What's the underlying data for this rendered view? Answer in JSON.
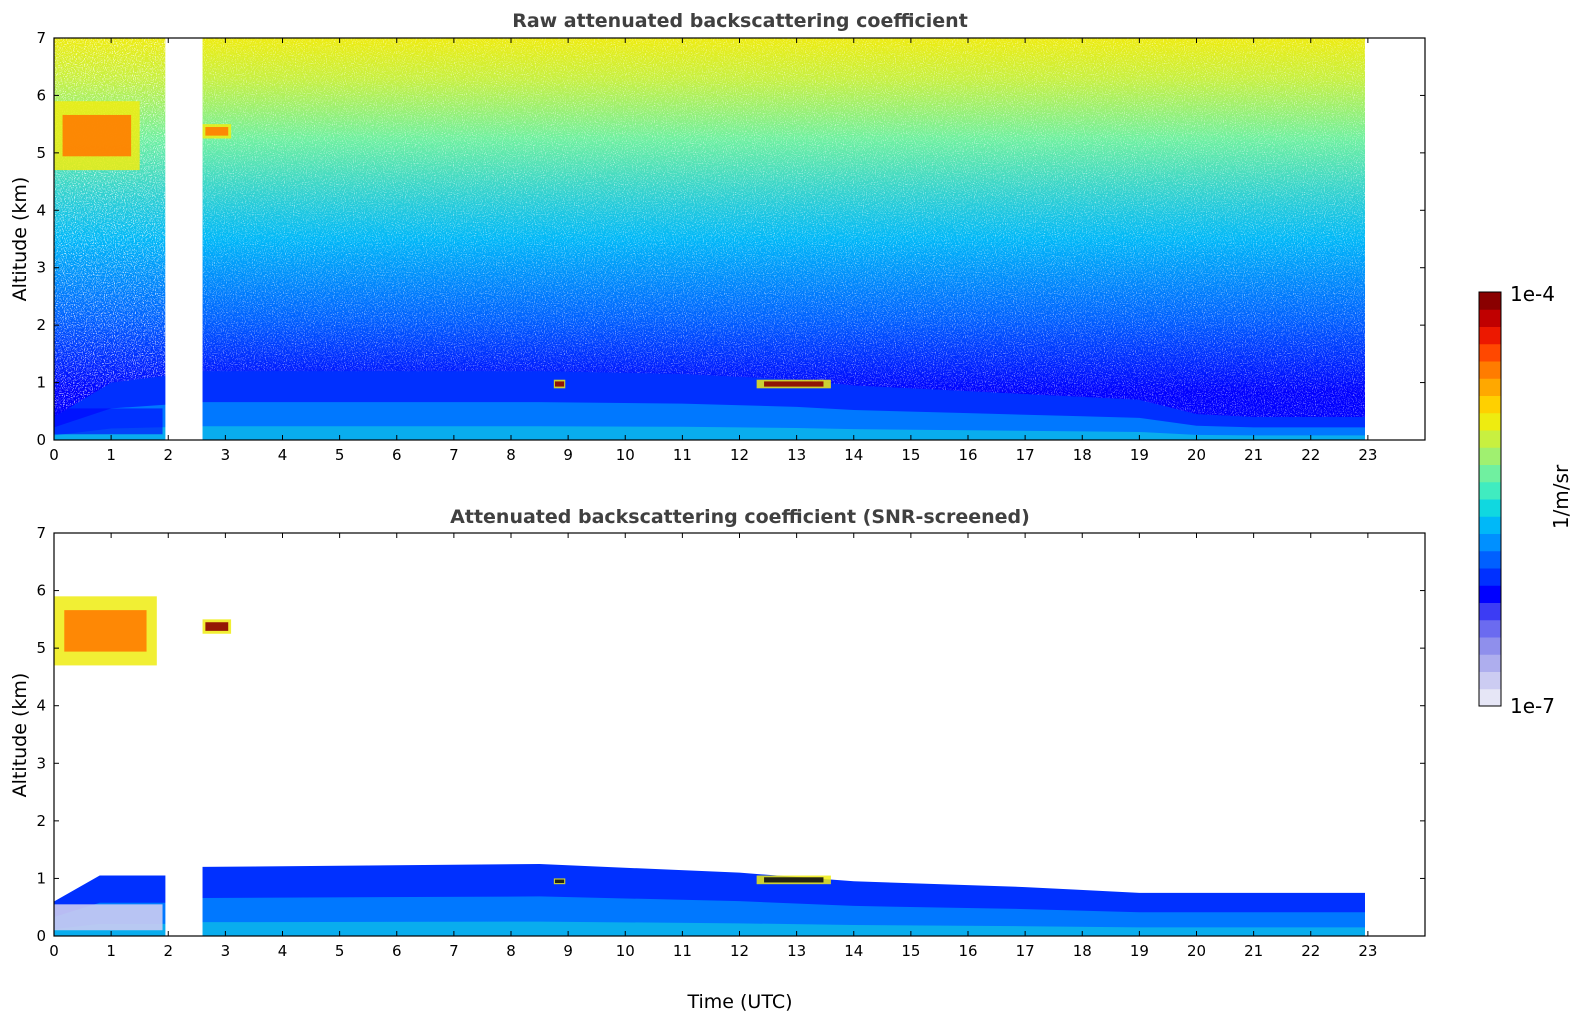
{
  "chart_data": [
    {
      "type": "heatmap",
      "title": "Raw attenuated backscattering coefficient",
      "xlabel": "",
      "ylabel": "Altitude (km)",
      "xlim": [
        0,
        24
      ],
      "ylim": [
        0,
        7
      ],
      "x_ticks": [
        0,
        1,
        2,
        3,
        4,
        5,
        6,
        7,
        8,
        9,
        10,
        11,
        12,
        13,
        14,
        15,
        16,
        17,
        18,
        19,
        20,
        21,
        22,
        23
      ],
      "y_ticks": [
        0,
        1,
        2,
        3,
        4,
        5,
        6,
        7
      ],
      "data_gaps_utc": [
        [
          1.95,
          2.6
        ],
        [
          22.95,
          24
        ]
      ],
      "boundary_layer_top_km": [
        {
          "x": 0,
          "y": 0.4
        },
        {
          "x": 1,
          "y": 1.0
        },
        {
          "x": 2.6,
          "y": 1.2
        },
        {
          "x": 6,
          "y": 1.2
        },
        {
          "x": 8.5,
          "y": 1.2
        },
        {
          "x": 11,
          "y": 1.15
        },
        {
          "x": 13,
          "y": 1.05
        },
        {
          "x": 14,
          "y": 0.95
        },
        {
          "x": 16,
          "y": 0.85
        },
        {
          "x": 18,
          "y": 0.75
        },
        {
          "x": 19,
          "y": 0.7
        },
        {
          "x": 20,
          "y": 0.45
        },
        {
          "x": 21,
          "y": 0.4
        },
        {
          "x": 22.95,
          "y": 0.4
        }
      ],
      "cloud_features": [
        {
          "x_start": 0,
          "x_end": 1.5,
          "alt_min_km": 4.7,
          "alt_max_km": 5.9,
          "intensity": "high"
        },
        {
          "x_start": 2.6,
          "x_end": 3.1,
          "alt_min_km": 5.25,
          "alt_max_km": 5.5,
          "intensity": "high"
        },
        {
          "x_start": 8.75,
          "x_end": 8.95,
          "alt_min_km": 0.9,
          "alt_max_km": 1.05,
          "intensity": "very high"
        },
        {
          "x_start": 12.3,
          "x_end": 13.6,
          "alt_min_km": 0.9,
          "alt_max_km": 1.05,
          "intensity": "very high"
        }
      ]
    },
    {
      "type": "heatmap",
      "title": "Attenuated backscattering coefficient (SNR-screened)",
      "xlabel": "Time (UTC)",
      "ylabel": "Altitude (km)",
      "xlim": [
        0,
        24
      ],
      "ylim": [
        0,
        7
      ],
      "x_ticks": [
        0,
        1,
        2,
        3,
        4,
        5,
        6,
        7,
        8,
        9,
        10,
        11,
        12,
        13,
        14,
        15,
        16,
        17,
        18,
        19,
        20,
        21,
        22,
        23
      ],
      "y_ticks": [
        0,
        1,
        2,
        3,
        4,
        5,
        6,
        7
      ],
      "data_gaps_utc": [
        [
          1.95,
          2.6
        ],
        [
          22.95,
          24
        ]
      ],
      "boundary_layer_top_km": [
        {
          "x": 0,
          "y": 0.6
        },
        {
          "x": 0.8,
          "y": 1.05
        },
        {
          "x": 1.95,
          "y": 1.05
        },
        {
          "x": 2.6,
          "y": 1.2
        },
        {
          "x": 8.5,
          "y": 1.25
        },
        {
          "x": 12,
          "y": 1.1
        },
        {
          "x": 14,
          "y": 0.95
        },
        {
          "x": 17,
          "y": 0.85
        },
        {
          "x": 19,
          "y": 0.75
        },
        {
          "x": 22.95,
          "y": 0.75
        }
      ],
      "cloud_features": [
        {
          "x_start": 0,
          "x_end": 1.8,
          "alt_min_km": 4.7,
          "alt_max_km": 5.9,
          "intensity": "high"
        },
        {
          "x_start": 2.6,
          "x_end": 3.1,
          "alt_min_km": 5.25,
          "alt_max_km": 5.5,
          "intensity": "very high"
        },
        {
          "x_start": 8.75,
          "x_end": 8.95,
          "alt_min_km": 0.9,
          "alt_max_km": 1.0,
          "intensity": "saturated"
        },
        {
          "x_start": 12.3,
          "x_end": 13.6,
          "alt_min_km": 0.9,
          "alt_max_km": 1.05,
          "intensity": "saturated"
        }
      ]
    }
  ],
  "colorbar": {
    "max_label": "1e-4",
    "min_label": "1e-7",
    "unit_label": "1/m/sr",
    "scale": "log",
    "colors": [
      "#e6e6f6",
      "#ccccf2",
      "#aeaeee",
      "#8f8fec",
      "#6b6bf0",
      "#3c3cf4",
      "#0000ff",
      "#0030ff",
      "#0060ff",
      "#0090ff",
      "#00b8f8",
      "#10d8e0",
      "#40ecc0",
      "#70f0a0",
      "#a0f070",
      "#c8f040",
      "#eeec10",
      "#ffd000",
      "#ffa800",
      "#ff7c00",
      "#ff4800",
      "#ec1800",
      "#c00000",
      "#8a0000"
    ]
  }
}
